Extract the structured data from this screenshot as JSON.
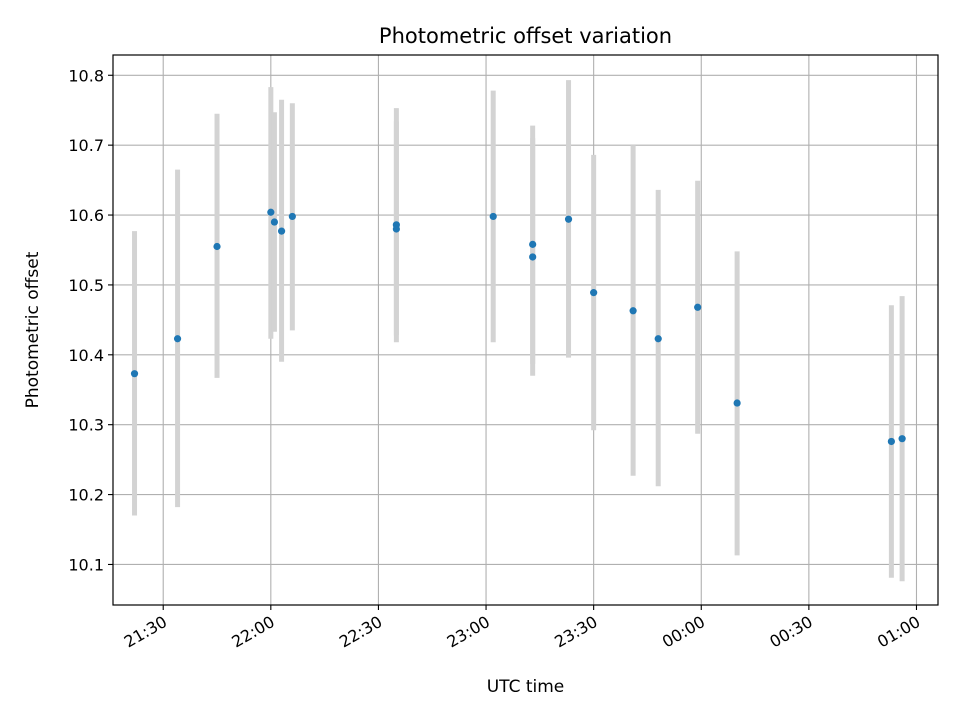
{
  "chart_data": {
    "type": "scatter",
    "title": "Photometric offset variation",
    "xlabel": "UTC time",
    "ylabel": "Photometric offset",
    "x_axis": "time",
    "xlim": [
      "21:16",
      "01:06"
    ],
    "ylim": [
      10.042,
      10.829
    ],
    "x_ticks": [
      "21:30",
      "22:00",
      "22:30",
      "23:00",
      "23:30",
      "00:00",
      "00:30",
      "01:00"
    ],
    "y_ticks": [
      10.1,
      10.2,
      10.3,
      10.4,
      10.5,
      10.6,
      10.7,
      10.8
    ],
    "grid": true,
    "legend": "none",
    "colors": {
      "points": "#1f77b4",
      "error_bars": "#d3d3d3",
      "grid": "#b0b0b0",
      "axes": "#000000"
    },
    "series": [
      {
        "points": [
          {
            "time": "21:22",
            "y": 10.373,
            "low": 10.17,
            "high": 10.577
          },
          {
            "time": "21:34",
            "y": 10.423,
            "low": 10.182,
            "high": 10.665
          },
          {
            "time": "21:45",
            "y": 10.555,
            "low": 10.367,
            "high": 10.745
          },
          {
            "time": "22:00",
            "y": 10.604,
            "low": 10.423,
            "high": 10.783
          },
          {
            "time": "22:01",
            "y": 10.59,
            "low": 10.433,
            "high": 10.747
          },
          {
            "time": "22:03",
            "y": 10.577,
            "low": 10.39,
            "high": 10.765
          },
          {
            "time": "22:06",
            "y": 10.598,
            "low": 10.435,
            "high": 10.76
          },
          {
            "time": "22:35",
            "y": 10.586,
            "low": 10.418,
            "high": 10.753
          },
          {
            "time": "22:35",
            "y": 10.58,
            "low": 10.428,
            "high": 10.734
          },
          {
            "time": "23:02",
            "y": 10.598,
            "low": 10.418,
            "high": 10.778
          },
          {
            "time": "23:13",
            "y": 10.54,
            "low": 10.37,
            "high": 10.71
          },
          {
            "time": "23:13",
            "y": 10.558,
            "low": 10.387,
            "high": 10.728
          },
          {
            "time": "23:23",
            "y": 10.594,
            "low": 10.396,
            "high": 10.793
          },
          {
            "time": "23:30",
            "y": 10.489,
            "low": 10.292,
            "high": 10.686
          },
          {
            "time": "23:41",
            "y": 10.463,
            "low": 10.227,
            "high": 10.7
          },
          {
            "time": "23:48",
            "y": 10.423,
            "low": 10.212,
            "high": 10.636
          },
          {
            "time": "23:59",
            "y": 10.468,
            "low": 10.287,
            "high": 10.649
          },
          {
            "time": "00:10",
            "y": 10.331,
            "low": 10.113,
            "high": 10.548
          },
          {
            "time": "00:53",
            "y": 10.276,
            "low": 10.081,
            "high": 10.471
          },
          {
            "time": "00:56",
            "y": 10.28,
            "low": 10.076,
            "high": 10.484
          }
        ]
      }
    ]
  }
}
